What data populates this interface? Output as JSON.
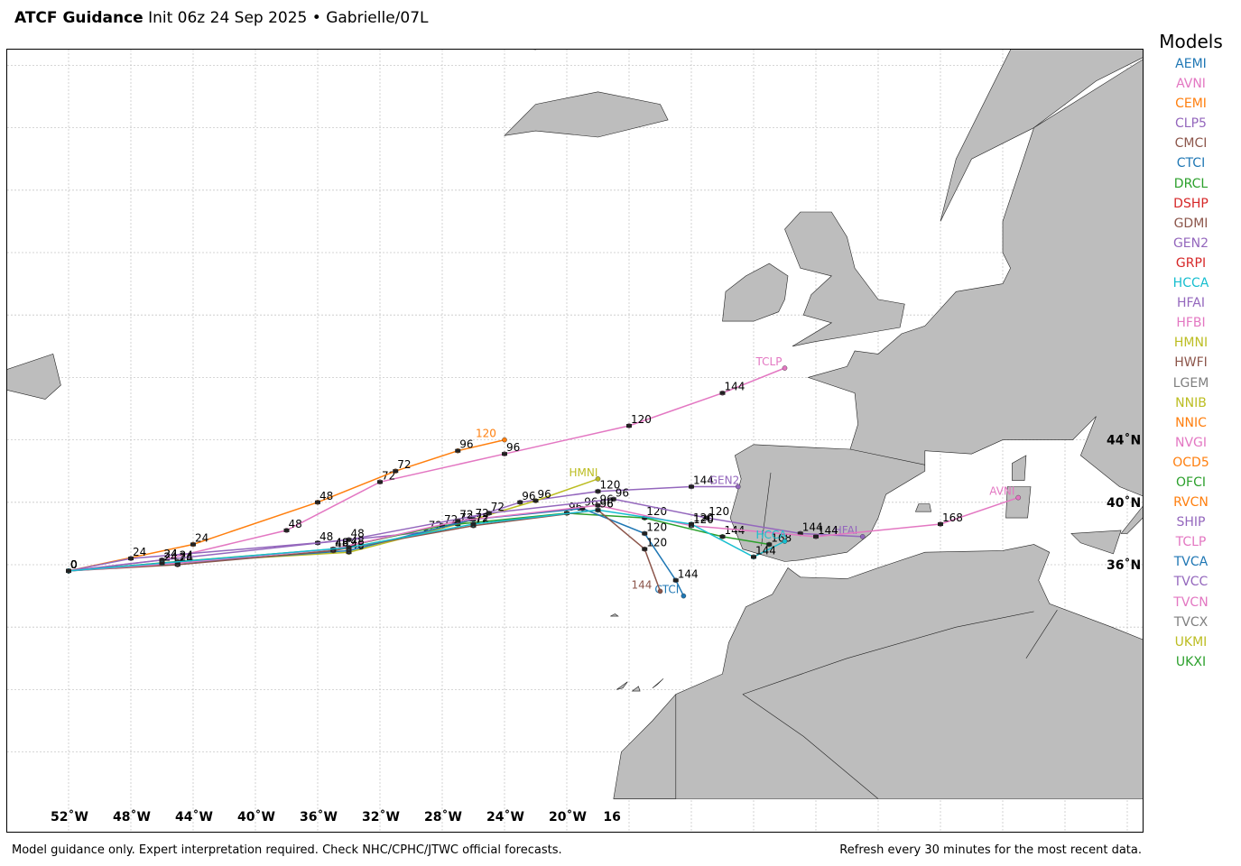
{
  "header": {
    "title": "ATCF Guidance",
    "subtitle": "Init 06z 24 Sep 2025 • Gabrielle/07L"
  },
  "legend": {
    "title": "Models",
    "items": [
      {
        "name": "AEMI",
        "color": "#1f77b4"
      },
      {
        "name": "AVNI",
        "color": "#e377c2"
      },
      {
        "name": "CEMI",
        "color": "#ff7f0e"
      },
      {
        "name": "CLP5",
        "color": "#9467bd"
      },
      {
        "name": "CMCI",
        "color": "#8c564b"
      },
      {
        "name": "CTCI",
        "color": "#1f77b4"
      },
      {
        "name": "DRCL",
        "color": "#2ca02c"
      },
      {
        "name": "DSHP",
        "color": "#d62728"
      },
      {
        "name": "GDMI",
        "color": "#8c564b"
      },
      {
        "name": "GEN2",
        "color": "#9467bd"
      },
      {
        "name": "GRPI",
        "color": "#d62728"
      },
      {
        "name": "HCCA",
        "color": "#17becf"
      },
      {
        "name": "HFAI",
        "color": "#9467bd"
      },
      {
        "name": "HFBI",
        "color": "#e377c2"
      },
      {
        "name": "HMNI",
        "color": "#bcbd22"
      },
      {
        "name": "HWFI",
        "color": "#8c564b"
      },
      {
        "name": "LGEM",
        "color": "#7f7f7f"
      },
      {
        "name": "NNIB",
        "color": "#bcbd22"
      },
      {
        "name": "NNIC",
        "color": "#ff7f0e"
      },
      {
        "name": "NVGI",
        "color": "#e377c2"
      },
      {
        "name": "OCD5",
        "color": "#ff7f0e"
      },
      {
        "name": "OFCI",
        "color": "#2ca02c"
      },
      {
        "name": "RVCN",
        "color": "#ff7f0e"
      },
      {
        "name": "SHIP",
        "color": "#9467bd"
      },
      {
        "name": "TCLP",
        "color": "#e377c2"
      },
      {
        "name": "TVCA",
        "color": "#1f77b4"
      },
      {
        "name": "TVCC",
        "color": "#9467bd"
      },
      {
        "name": "TVCN",
        "color": "#e377c2"
      },
      {
        "name": "TVCX",
        "color": "#7f7f7f"
      },
      {
        "name": "UKMI",
        "color": "#bcbd22"
      },
      {
        "name": "UKXI",
        "color": "#2ca02c"
      }
    ]
  },
  "map": {
    "lon_labels": [
      "52˚W",
      "48˚W",
      "44˚W",
      "40˚W",
      "36˚W",
      "32˚W",
      "28˚W",
      "24˚W",
      "20˚W",
      "16"
    ],
    "lat_labels": [
      "44˚N",
      "40˚N",
      "36˚N"
    ],
    "land_color": "#bdbdbd",
    "grid": true,
    "tracks": [
      {
        "name": "AVNI",
        "color": "#e377c2",
        "points": [
          [
            -52,
            35.6,
            "0"
          ],
          [
            -46,
            36.3,
            "24"
          ],
          [
            -38,
            38.2,
            "48"
          ],
          [
            -32,
            41.3,
            "72"
          ],
          [
            -24,
            43.1,
            "96"
          ],
          [
            -16,
            44.9,
            "120"
          ],
          [
            -10,
            47.0,
            "144"
          ],
          [
            -6,
            48.6,
            "TCLP"
          ]
        ],
        "label": "TCLP"
      },
      {
        "name": "CEMI",
        "color": "#ff7f0e",
        "points": [
          [
            -52,
            35.6,
            "0"
          ],
          [
            -44,
            37.3,
            "24"
          ],
          [
            -36,
            40.0,
            "48"
          ],
          [
            -31,
            42.0,
            "72"
          ],
          [
            -27,
            43.3,
            "96"
          ],
          [
            -24,
            44.0,
            "120"
          ]
        ],
        "label": "CEMI"
      },
      {
        "name": "CLP5",
        "color": "#9467bd",
        "points": [
          [
            -52,
            35.6,
            "0"
          ],
          [
            -48,
            36.4,
            "24"
          ],
          [
            -36,
            37.4,
            "48"
          ],
          [
            -29,
            38.1,
            "72"
          ],
          [
            -23,
            40.0,
            "96"
          ],
          [
            -18,
            40.7,
            "120"
          ],
          [
            -12,
            41.0,
            "144"
          ],
          [
            -9,
            41.0,
            "GEN2"
          ]
        ],
        "label": "GEN2"
      },
      {
        "name": "HMNI",
        "color": "#bcbd22",
        "points": [
          [
            -52,
            35.6,
            "0"
          ],
          [
            -46,
            36.1,
            "24"
          ],
          [
            -34,
            36.8,
            "48"
          ],
          [
            -27,
            38.6,
            "72"
          ],
          [
            -22,
            40.1,
            "96"
          ],
          [
            -18,
            41.5,
            "HMNI"
          ]
        ],
        "label": "HMNI"
      },
      {
        "name": "OFCI",
        "color": "#2ca02c",
        "points": [
          [
            -52,
            35.6,
            "0"
          ],
          [
            -45,
            36.2,
            "24"
          ],
          [
            -35,
            37.0,
            "48"
          ],
          [
            -28,
            38.5,
            "72"
          ],
          [
            -20,
            39.3,
            "96"
          ],
          [
            -15,
            39.0,
            "120"
          ],
          [
            -10,
            37.8,
            "144"
          ],
          [
            -7,
            37.3,
            "168"
          ]
        ],
        "label": ""
      },
      {
        "name": "AEMI",
        "color": "#1f77b4",
        "points": [
          [
            -52,
            35.6,
            "0"
          ],
          [
            -45,
            36.1,
            "24"
          ],
          [
            -34,
            36.9,
            "48"
          ],
          [
            -26,
            38.9,
            "72"
          ],
          [
            -19,
            39.6,
            "96"
          ],
          [
            -15,
            38.0,
            "120"
          ],
          [
            -13,
            35.0,
            "144"
          ],
          [
            -12.5,
            34.0,
            "CTCI"
          ]
        ],
        "label": "CTCI"
      },
      {
        "name": "HWFI",
        "color": "#8c564b",
        "points": [
          [
            -52,
            35.6,
            "0"
          ],
          [
            -45,
            36.0,
            "24"
          ],
          [
            -35,
            36.9,
            "48"
          ],
          [
            -26,
            38.5,
            "72"
          ],
          [
            -18,
            39.5,
            "96"
          ],
          [
            -15,
            37.0,
            "120"
          ],
          [
            -14,
            34.3,
            "144"
          ]
        ],
        "label": "HWFI"
      },
      {
        "name": "HFAI",
        "color": "#9467bd",
        "points": [
          [
            -52,
            35.6,
            "0"
          ],
          [
            -46,
            36.3,
            "24"
          ],
          [
            -34,
            37.6,
            "48"
          ],
          [
            -25,
            39.3,
            "72"
          ],
          [
            -17,
            40.2,
            "96"
          ],
          [
            -11,
            39.0,
            "120"
          ],
          [
            -5,
            38.0,
            "144"
          ],
          [
            -1,
            37.8,
            "HFAI"
          ]
        ],
        "label": "HFAI"
      },
      {
        "name": "AVNI-2",
        "color": "#e377c2",
        "points": [
          [
            -52,
            35.6,
            "0"
          ],
          [
            -45,
            36.1,
            "24"
          ],
          [
            -35,
            37.0,
            "48"
          ],
          [
            -27,
            38.8,
            "72"
          ],
          [
            -18,
            39.8,
            "96"
          ],
          [
            -12,
            38.5,
            "120"
          ],
          [
            -4,
            37.8,
            "144"
          ],
          [
            4,
            38.6,
            "168"
          ],
          [
            9,
            40.3,
            "AVNI"
          ]
        ],
        "label": "AVNI"
      },
      {
        "name": "HCCA",
        "color": "#17becf",
        "points": [
          [
            -52,
            35.6,
            "0"
          ],
          [
            -46,
            36.1,
            "24"
          ],
          [
            -34,
            37.1,
            "48"
          ],
          [
            -26,
            38.6,
            "72"
          ],
          [
            -18,
            39.5,
            "96"
          ],
          [
            -12,
            38.6,
            "120"
          ],
          [
            -8,
            36.5,
            "144"
          ],
          [
            -6,
            37.5,
            "HCCA"
          ]
        ],
        "label": "HCCA"
      }
    ]
  },
  "footer": {
    "left": "Model guidance only. Expert interpretation required. Check NHC/CPHC/JTWC official forecasts.",
    "right": "Refresh every 30 minutes for the most recent data."
  }
}
